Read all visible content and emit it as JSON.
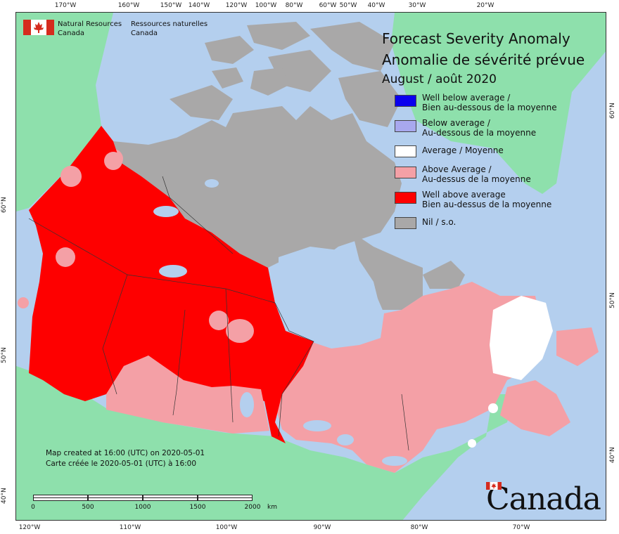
{
  "title": {
    "line1": "Forecast Severity Anomaly",
    "line2": "Anomalie de sévérité prévue",
    "date": "August / août 2020"
  },
  "agency": {
    "en_line1": "Natural Resources",
    "en_line2": "Canada",
    "fr_line1": "Ressources naturelles",
    "fr_line2": "Canada"
  },
  "legend": [
    {
      "line1": "Well below average /",
      "line2": "Bien au-dessous de la moyenne",
      "color": "#0a00ee"
    },
    {
      "line1": "Below average /",
      "line2": "Au-dessous de la moyenne",
      "color": "#a8a8ee"
    },
    {
      "line1": "Average / Moyenne",
      "line2": "",
      "color": "#ffffff"
    },
    {
      "line1": "Above Average /",
      "line2": "Au-dessus de la moyenne",
      "color": "#f4a0a6"
    },
    {
      "line1": "Well above average",
      "line2": "Bien au-dessus de la moyenne",
      "color": "#fe0000"
    },
    {
      "line1": "Nil / s.o.",
      "line2": "",
      "color": "#a9a8a8"
    }
  ],
  "created": {
    "en": "Map created at 16:00 (UTC) on 2020-05-01",
    "fr": "Carte créée le 2020-05-01 (UTC) à 16:00"
  },
  "scale": {
    "labels": [
      "0",
      "500",
      "1000",
      "1500",
      "2000"
    ],
    "unit": "km"
  },
  "graticule": {
    "top": [
      "170°W",
      "160°W",
      "150°W",
      "140°W",
      "120°W",
      "100°W",
      "80°W",
      "60°W",
      "50°W",
      "40°W",
      "30°W",
      "20°W"
    ],
    "bottom": [
      "120°W",
      "110°W",
      "100°W",
      "90°W",
      "80°W",
      "70°W"
    ],
    "left": [
      "60°N",
      "50°N",
      "40°N"
    ],
    "right": [
      "60°N",
      "50°N",
      "40°N"
    ]
  },
  "wordmark": "Canada",
  "colors": {
    "ocean": "#b4cfee",
    "foreign_land": "#8ee0ac",
    "nil": "#a9a8a8",
    "well_above": "#fe0000",
    "above": "#f4a0a6",
    "average": "#ffffff",
    "flag_red": "#d52b1e"
  }
}
